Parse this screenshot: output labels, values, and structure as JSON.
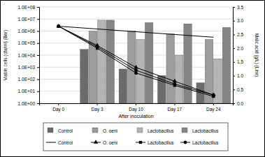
{
  "chart_data": {
    "type": "bar",
    "x_label": "After inoculation",
    "y_label": "Viable cells (cfu/ml) (Bar)",
    "y2_label": "Malic acid (g/L) (Line)",
    "categories": [
      "Day 0",
      "Day 3",
      "Day 10",
      "Day 17",
      "Day 24"
    ],
    "log": "y",
    "grid": true,
    "legend": "bottom",
    "ylim": [
      1,
      100000000
    ],
    "yticks": [
      {
        "value": 1,
        "label": "1.0E+00"
      },
      {
        "value": 10,
        "label": "1.0E+01"
      },
      {
        "value": 100,
        "label": "1.0E+02"
      },
      {
        "value": 1000,
        "label": "1.0E+03"
      },
      {
        "value": 10000,
        "label": "1.0E+04"
      },
      {
        "value": 100000,
        "label": "1.0E+05"
      },
      {
        "value": 1000000,
        "label": "1.0E+06"
      },
      {
        "value": 10000000,
        "label": "1.0E+07"
      },
      {
        "value": 100000000,
        "label": "1.0E+08"
      }
    ],
    "y2lim": [
      0,
      3.5
    ],
    "y2ticks": [
      {
        "value": 0,
        "label": "0.0"
      },
      {
        "value": 0.5,
        "label": "0.5"
      },
      {
        "value": 1,
        "label": "1.0"
      },
      {
        "value": 1.5,
        "label": "1.5"
      },
      {
        "value": 2,
        "label": "2.0"
      },
      {
        "value": 2.5,
        "label": "2.5"
      },
      {
        "value": 3,
        "label": "3.0"
      },
      {
        "value": 3.5,
        "label": "3.5"
      }
    ],
    "series": [
      {
        "name": "Control",
        "type": "bar",
        "color": "#6b6b6b",
        "values": [
          null,
          30000,
          700,
          200,
          50
        ]
      },
      {
        "name": "O. oeni",
        "type": "bar",
        "color": "#9c9c9c",
        "values": [
          null,
          1000000,
          1000000,
          600000,
          200000
        ]
      },
      {
        "name": "Lactobacillus",
        "type": "bar",
        "color": "#b4b4b4",
        "values": [
          null,
          8000000,
          200000,
          10000,
          5000
        ]
      },
      {
        "name": "Lactobacillus",
        "type": "bar",
        "color": "#858585",
        "values": [
          null,
          8000000,
          5000000,
          4000000,
          2000000
        ]
      },
      {
        "name": "Control",
        "type": "line",
        "axis": "y2",
        "color": "#000000",
        "marker": "none",
        "values": [
          2.8,
          2.7,
          2.6,
          2.5,
          2.4
        ]
      },
      {
        "name": "O. oeni",
        "type": "line",
        "axis": "y2",
        "color": "#000000",
        "marker": "triangle",
        "values": [
          2.8,
          2.1,
          1.3,
          0.8,
          0.3
        ]
      },
      {
        "name": "Lactobacillus",
        "type": "line",
        "axis": "y2",
        "color": "#000000",
        "marker": "square",
        "values": [
          2.8,
          2.0,
          1.1,
          0.65,
          0.25
        ]
      },
      {
        "name": "Lactobacillus",
        "type": "line",
        "axis": "y2",
        "color": "#000000",
        "marker": "circle",
        "values": [
          2.8,
          2.05,
          1.2,
          0.7,
          0.3
        ]
      }
    ]
  }
}
